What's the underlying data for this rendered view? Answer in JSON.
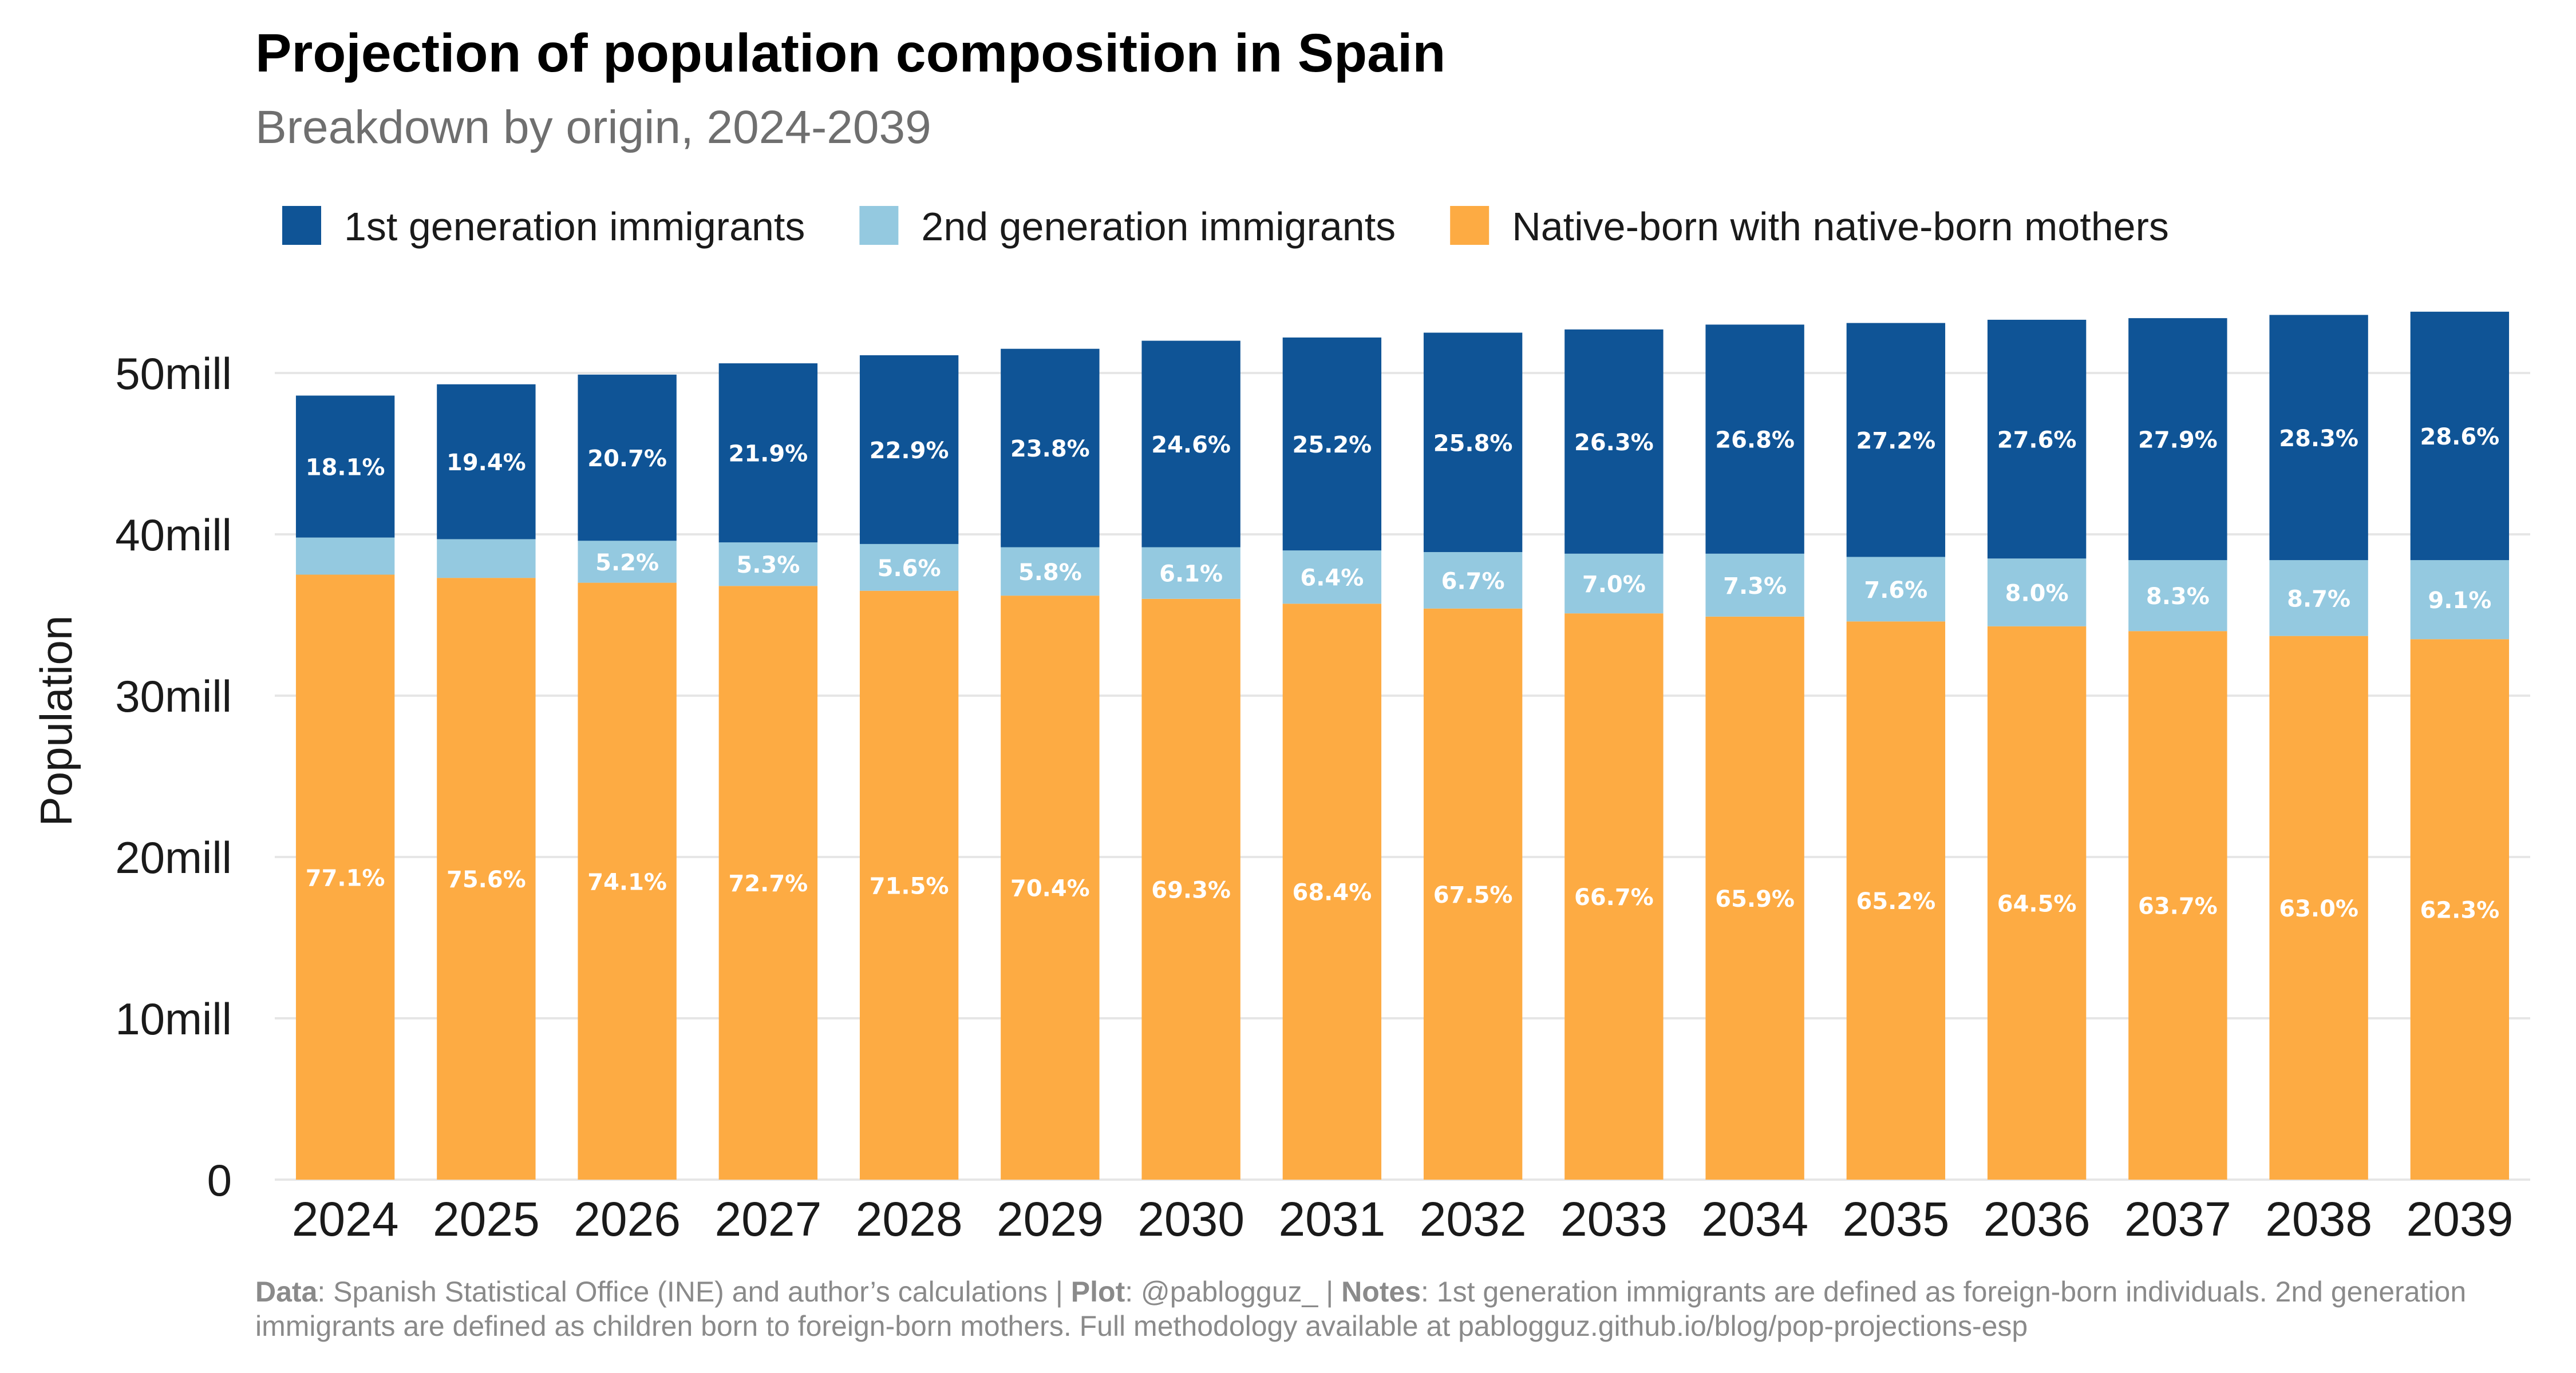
{
  "colors": {
    "first_gen": "#0f5496",
    "second_gen": "#94c9e0",
    "native": "#fdab43",
    "grid": "#e6e6e6"
  },
  "caption": {
    "data_label": "Data",
    "data_text": ": Spanish Statistical Office (INE) and author’s calculations | ",
    "plot_label": "Plot",
    "plot_text": ": @pablogguz_ | ",
    "notes_label": "Notes",
    "notes_text": ": 1st generation immigrants are defined as foreign-born individuals. 2nd generation",
    "line2": "immigrants are defined as children born to foreign-born mothers. Full methodology available at pablogguz.github.io/blog/pop-projections-esp"
  },
  "chart_data": {
    "type": "bar",
    "stacked": true,
    "title": "Projection of population composition in Spain",
    "subtitle": "Breakdown by origin, 2024-2039",
    "ylabel": "Population",
    "xlabel": "",
    "ylim": [
      0,
      55
    ],
    "unit": "million",
    "yticks": [
      0,
      10,
      20,
      30,
      40,
      50
    ],
    "ytick_labels": [
      "0",
      "10mill",
      "20mill",
      "30mill",
      "40mill",
      "50mill"
    ],
    "grid": true,
    "legend_position": "top-left",
    "categories": [
      "2024",
      "2025",
      "2026",
      "2027",
      "2028",
      "2029",
      "2030",
      "2031",
      "2032",
      "2033",
      "2034",
      "2035",
      "2036",
      "2037",
      "2038",
      "2039"
    ],
    "series": [
      {
        "name": "Native-born with native-born mothers",
        "color_key": "native",
        "values": [
          37.5,
          37.3,
          37.0,
          36.8,
          36.5,
          36.2,
          36.0,
          35.7,
          35.4,
          35.1,
          34.9,
          34.6,
          34.3,
          34.0,
          33.7,
          33.5
        ],
        "labels": [
          "77.1%",
          "75.6%",
          "74.1%",
          "72.7%",
          "71.5%",
          "70.4%",
          "69.3%",
          "68.4%",
          "67.5%",
          "66.7%",
          "65.9%",
          "65.2%",
          "64.5%",
          "63.7%",
          "63.0%",
          "62.3%"
        ]
      },
      {
        "name": "2nd generation immigrants",
        "color_key": "second_gen",
        "values": [
          2.3,
          2.4,
          2.6,
          2.7,
          2.9,
          3.0,
          3.2,
          3.3,
          3.5,
          3.7,
          3.9,
          4.0,
          4.2,
          4.4,
          4.7,
          4.9
        ],
        "labels": [
          "",
          "",
          "5.2%",
          "5.3%",
          "5.6%",
          "5.8%",
          "6.1%",
          "6.4%",
          "6.7%",
          "7.0%",
          "7.3%",
          "7.6%",
          "8.0%",
          "8.3%",
          "8.7%",
          "9.1%"
        ]
      },
      {
        "name": "1st generation immigrants",
        "color_key": "first_gen",
        "values": [
          8.8,
          9.6,
          10.3,
          11.1,
          11.7,
          12.3,
          12.8,
          13.2,
          13.6,
          13.9,
          14.2,
          14.5,
          14.8,
          15.0,
          15.2,
          15.4
        ],
        "labels": [
          "18.1%",
          "19.4%",
          "20.7%",
          "21.9%",
          "22.9%",
          "23.8%",
          "24.6%",
          "25.2%",
          "25.8%",
          "26.3%",
          "26.8%",
          "27.2%",
          "27.6%",
          "27.9%",
          "28.3%",
          "28.6%"
        ]
      }
    ],
    "legend_order": [
      "1st generation immigrants",
      "2nd generation immigrants",
      "Native-born with native-born mothers"
    ]
  }
}
